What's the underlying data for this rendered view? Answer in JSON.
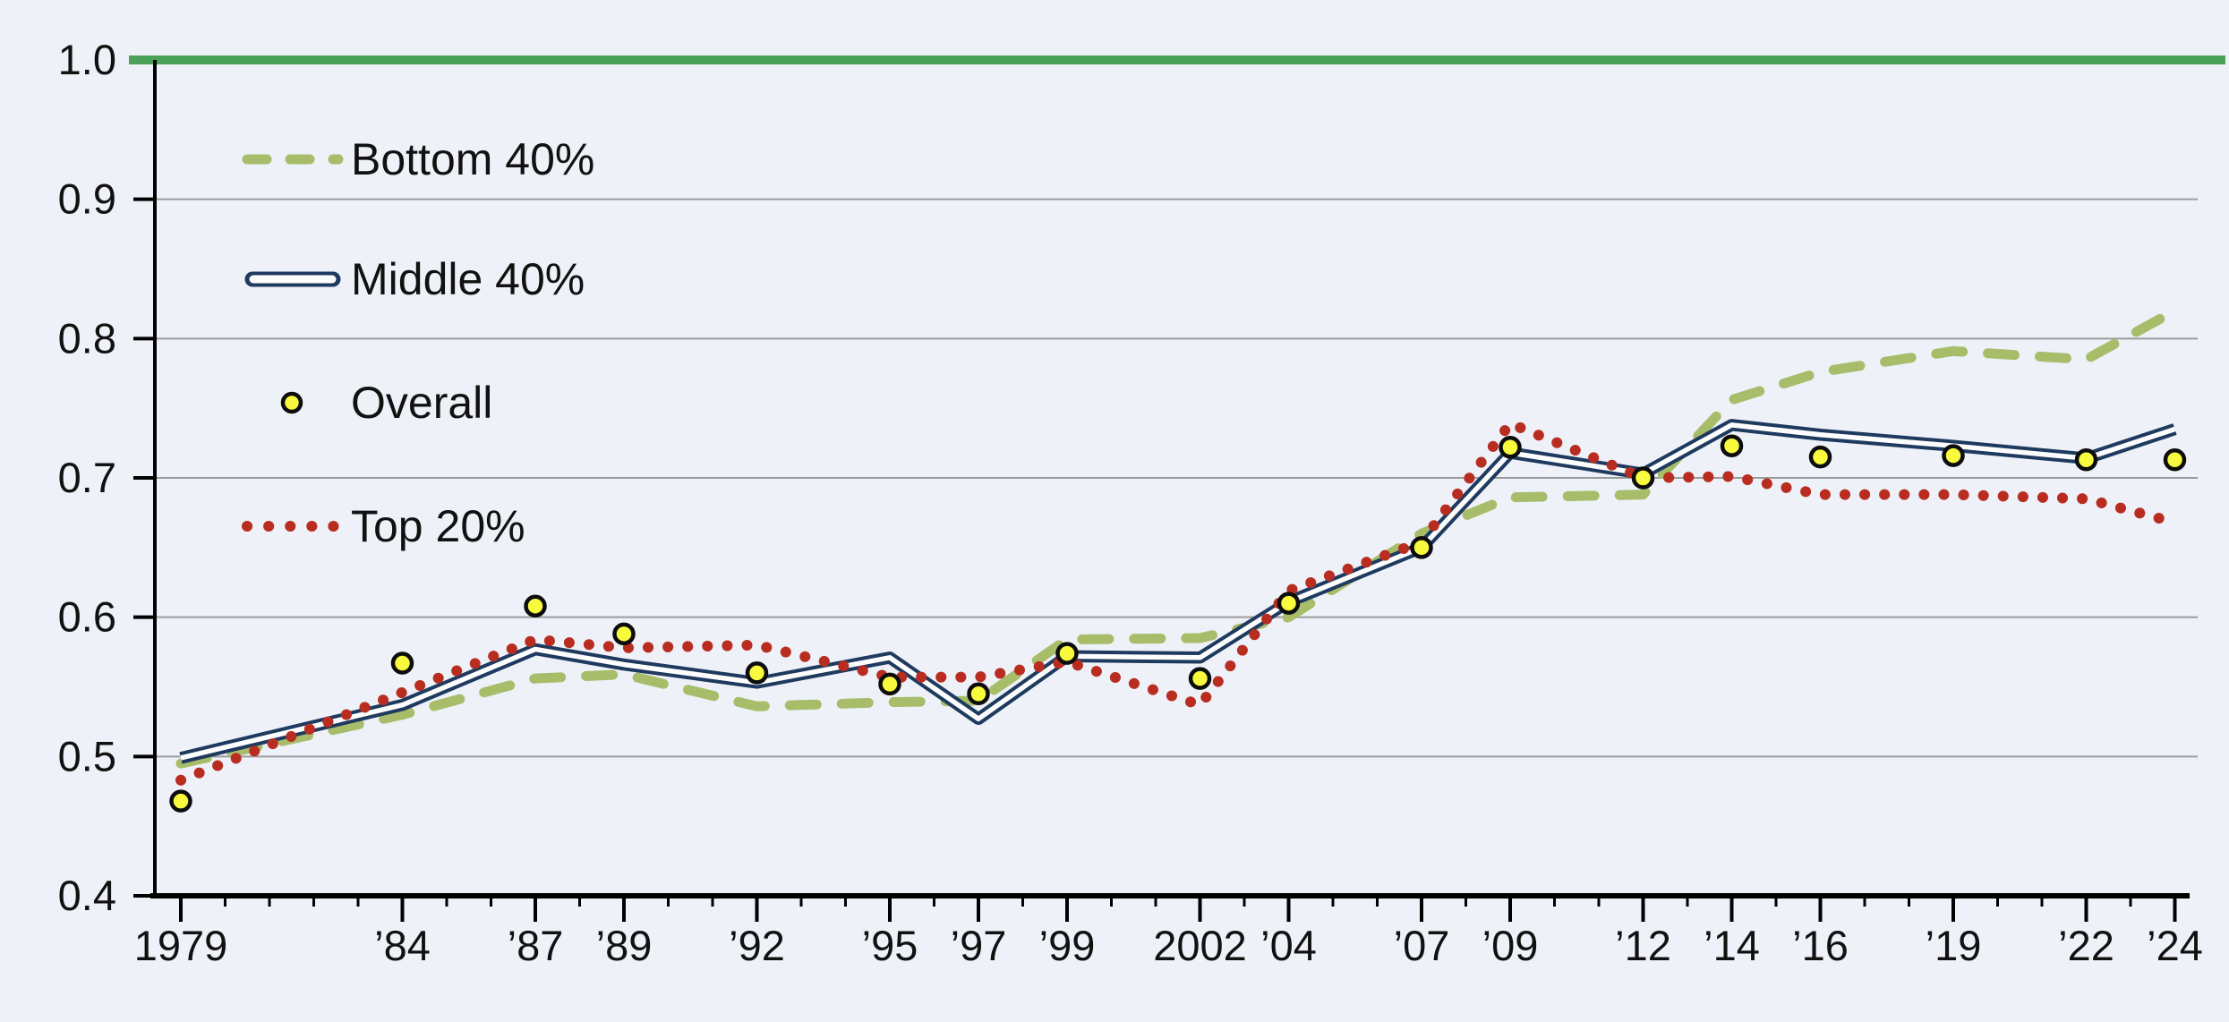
{
  "page": {
    "background": "#eef1f8",
    "text_color": "#111111",
    "grid_color": "#9b9b9b",
    "axis_color": "#000000"
  },
  "legend": {
    "items": [
      {
        "label": "Bottom 40%"
      },
      {
        "label": "Middle 40%"
      },
      {
        "label": "Overall"
      },
      {
        "label": "Top 20%"
      }
    ]
  },
  "chart_data": {
    "type": "line",
    "title": "",
    "xlabel": "",
    "ylabel": "",
    "grid": true,
    "legend_position": "upper-left",
    "ylim": [
      0.4,
      1.0
    ],
    "yticks": [
      0.4,
      0.5,
      0.6,
      0.7,
      0.8,
      0.9,
      1.0
    ],
    "ytick_labels": [
      "0.4",
      "0.5",
      "0.6",
      "0.7",
      "0.8",
      "0.9",
      "1.0"
    ],
    "x": [
      1979,
      1984,
      1987,
      1989,
      1992,
      1995,
      1997,
      1999,
      2002,
      2004,
      2007,
      2009,
      2012,
      2014,
      2016,
      2019,
      2022,
      2024
    ],
    "x_tick_labels": [
      "1979",
      "’84",
      "’87",
      "’89",
      "’92",
      "’95",
      "’97",
      "’99",
      "2002",
      "’04",
      "’07",
      "’09",
      "’12",
      "’14",
      "’16",
      "’19",
      "’22",
      "’24"
    ],
    "xlim": [
      1978.4,
      2024.6
    ],
    "minor_ticks_every_year": true,
    "reference_line": {
      "value": 1.0,
      "color": "#4ba158",
      "width": 10
    },
    "series": [
      {
        "name": "Bottom 40%",
        "type": "line",
        "style": "dashed",
        "color": "#a7bd6a",
        "values": [
          0.495,
          0.53,
          0.556,
          0.559,
          0.536,
          0.539,
          0.54,
          0.584,
          0.585,
          0.6,
          0.66,
          0.686,
          0.688,
          0.756,
          0.776,
          0.791,
          0.785,
          0.82
        ]
      },
      {
        "name": "Middle 40%",
        "type": "line",
        "style": "double",
        "color": "#1e3a5f",
        "inner_color": "#fdfdfd",
        "values": [
          0.499,
          0.537,
          0.577,
          0.566,
          0.553,
          0.571,
          0.527,
          0.572,
          0.571,
          0.611,
          0.65,
          0.718,
          0.703,
          0.738,
          0.731,
          0.723,
          0.714,
          0.735
        ]
      },
      {
        "name": "Overall",
        "type": "scatter",
        "style": "circle-marker",
        "color": "#f9f93e",
        "edge_color": "#0d0d0d",
        "values": [
          0.468,
          0.567,
          0.608,
          0.588,
          0.56,
          0.552,
          0.545,
          0.574,
          0.556,
          0.61,
          0.65,
          0.722,
          0.7,
          0.723,
          0.715,
          0.716,
          0.713,
          0.713
        ]
      },
      {
        "name": "Top 20%",
        "type": "line",
        "style": "dotted",
        "color": "#b92d21",
        "values": [
          0.483,
          0.546,
          0.584,
          0.578,
          0.58,
          0.557,
          0.557,
          0.568,
          0.537,
          0.619,
          0.654,
          0.739,
          0.7,
          0.701,
          0.688,
          0.688,
          0.685,
          0.668
        ]
      }
    ]
  }
}
